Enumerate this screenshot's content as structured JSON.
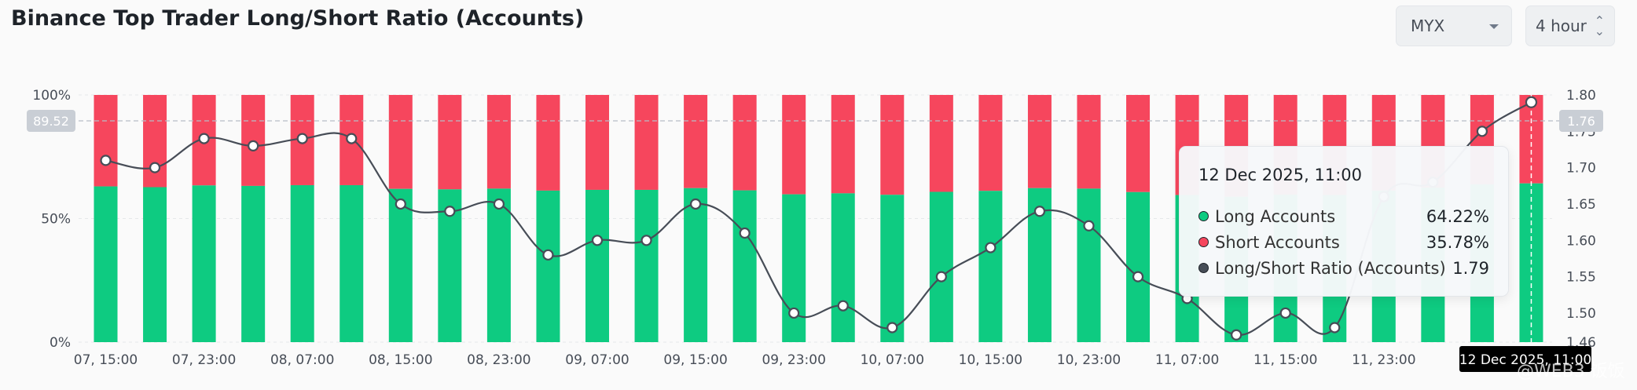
{
  "title": "Binance Top Trader Long/Short Ratio (Accounts)",
  "controls": {
    "symbol": "MYX",
    "interval": "4 hour"
  },
  "colors": {
    "long": "#0ecb81",
    "short": "#f6465d",
    "ratio_line": "#474d57"
  },
  "chart_data": {
    "type": "bar",
    "categories": [
      "07, 15:00",
      "07, 19:00",
      "07, 23:00",
      "08, 03:00",
      "08, 07:00",
      "08, 11:00",
      "08, 15:00",
      "08, 19:00",
      "08, 23:00",
      "09, 03:00",
      "09, 07:00",
      "09, 11:00",
      "09, 15:00",
      "09, 19:00",
      "09, 23:00",
      "10, 03:00",
      "10, 07:00",
      "10, 11:00",
      "10, 15:00",
      "10, 19:00",
      "10, 23:00",
      "11, 03:00",
      "11, 07:00",
      "11, 11:00",
      "11, 15:00",
      "11, 19:00",
      "11, 23:00",
      "12, 03:00",
      "12, 07:00",
      "12, 11:00"
    ],
    "x_tick_labels": [
      "07, 15:00",
      "07, 23:00",
      "08, 07:00",
      "08, 15:00",
      "08, 23:00",
      "09, 07:00",
      "09, 15:00",
      "09, 23:00",
      "10, 07:00",
      "10, 15:00",
      "10, 23:00",
      "11, 07:00",
      "11, 15:00",
      "11, 23:00"
    ],
    "series": [
      {
        "name": "Long Accounts",
        "values": [
          63.0,
          62.7,
          63.4,
          63.2,
          63.5,
          63.5,
          62.0,
          61.8,
          62.1,
          61.3,
          61.6,
          61.6,
          62.3,
          61.4,
          59.8,
          60.2,
          59.6,
          60.8,
          61.2,
          62.3,
          62.1,
          60.7,
          59.5,
          58.8,
          59.7,
          59.5,
          61.3,
          62.5,
          63.8,
          64.22
        ]
      },
      {
        "name": "Short Accounts",
        "values": [
          37.0,
          37.3,
          36.6,
          36.8,
          36.5,
          36.5,
          38.0,
          38.2,
          37.9,
          38.7,
          38.4,
          38.4,
          37.7,
          38.6,
          40.2,
          39.8,
          40.4,
          39.2,
          38.8,
          37.7,
          37.9,
          39.3,
          40.5,
          41.2,
          40.3,
          40.5,
          38.7,
          37.5,
          36.2,
          35.78
        ]
      },
      {
        "name": "Long/Short Ratio (Accounts)",
        "axis": "right",
        "values": [
          1.71,
          1.7,
          1.74,
          1.73,
          1.74,
          1.74,
          1.65,
          1.64,
          1.65,
          1.58,
          1.6,
          1.6,
          1.65,
          1.61,
          1.5,
          1.51,
          1.48,
          1.55,
          1.59,
          1.64,
          1.62,
          1.55,
          1.52,
          1.47,
          1.5,
          1.48,
          1.66,
          1.68,
          1.75,
          1.79
        ]
      }
    ],
    "ylim_left": [
      0,
      100
    ],
    "left_ticks": [
      "0%",
      "50%",
      "100%"
    ],
    "ylim_right": [
      1.46,
      1.8
    ],
    "right_ticks": [
      "1.46",
      "1.50",
      "1.55",
      "1.60",
      "1.65",
      "1.70",
      "1.75",
      "1.80"
    ],
    "crosshair": {
      "left_value": "89.52",
      "right_value": "1.76",
      "x_label": "12 Dec 2025, 11:00"
    },
    "grid": true
  },
  "tooltip": {
    "date": "12 Dec 2025, 11:00",
    "rows": [
      {
        "label": "Long Accounts",
        "value": "64.22%",
        "color": "#0ecb81"
      },
      {
        "label": "Short Accounts",
        "value": "35.78%",
        "color": "#f6465d"
      },
      {
        "label": "Long/Short Ratio (Accounts)",
        "value": "1.79",
        "color": "#474d57"
      }
    ]
  },
  "watermark": "@WEB3 饭饭"
}
